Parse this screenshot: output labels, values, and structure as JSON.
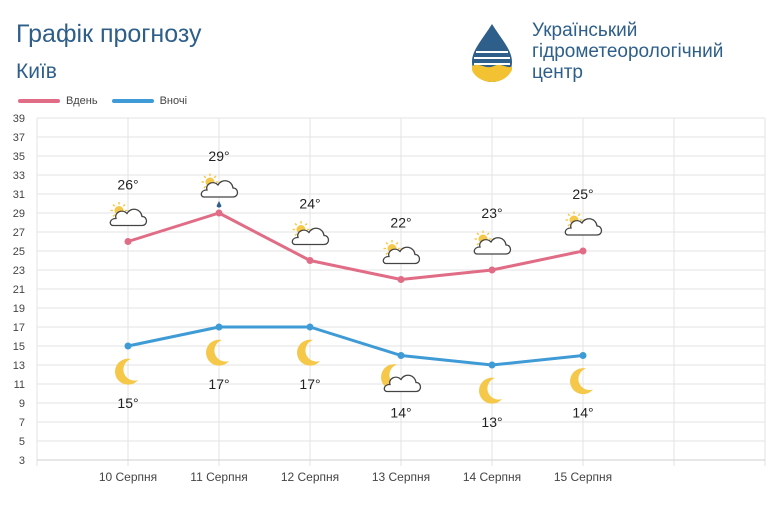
{
  "header": {
    "title": "Графік прогнозу",
    "city": "Київ",
    "org_line1": "Український",
    "org_line2": "гідрометеорологічний",
    "org_line3": "центр"
  },
  "legend": {
    "day": "Вдень",
    "night": "Вночі"
  },
  "colors": {
    "day": "#e06c86",
    "night": "#3f9bd6",
    "text": "#2e5f8a"
  },
  "chart_data": {
    "type": "line",
    "categories": [
      "10 Серпня",
      "11 Серпня",
      "12 Серпня",
      "13 Серпня",
      "14 Серпня",
      "15 Серпня"
    ],
    "series": [
      {
        "name": "Вдень",
        "values": [
          26,
          29,
          24,
          22,
          23,
          25
        ],
        "labels": [
          "26°",
          "29°",
          "24°",
          "22°",
          "23°",
          "25°"
        ],
        "icons": [
          "partly-cloudy-icon",
          "cloud-rain-sun-icon",
          "partly-cloudy-icon",
          "partly-cloudy-icon",
          "partly-cloudy-icon",
          "partly-cloudy-icon"
        ]
      },
      {
        "name": "Вночі",
        "values": [
          15,
          17,
          17,
          14,
          13,
          14
        ],
        "labels": [
          "15°",
          "17°",
          "17°",
          "14°",
          "13°",
          "14°"
        ],
        "icons": [
          "moon-icon",
          "moon-icon",
          "moon-icon",
          "cloudy-night-icon",
          "moon-icon",
          "moon-icon"
        ]
      }
    ],
    "yticks": [
      "3",
      "5",
      "7",
      "9",
      "11",
      "13",
      "15",
      "17",
      "19",
      "21",
      "23",
      "25",
      "27",
      "29",
      "31",
      "33",
      "35",
      "37",
      "39"
    ],
    "ylim": [
      3,
      39
    ],
    "grid": true,
    "legend_position": "top-left"
  }
}
